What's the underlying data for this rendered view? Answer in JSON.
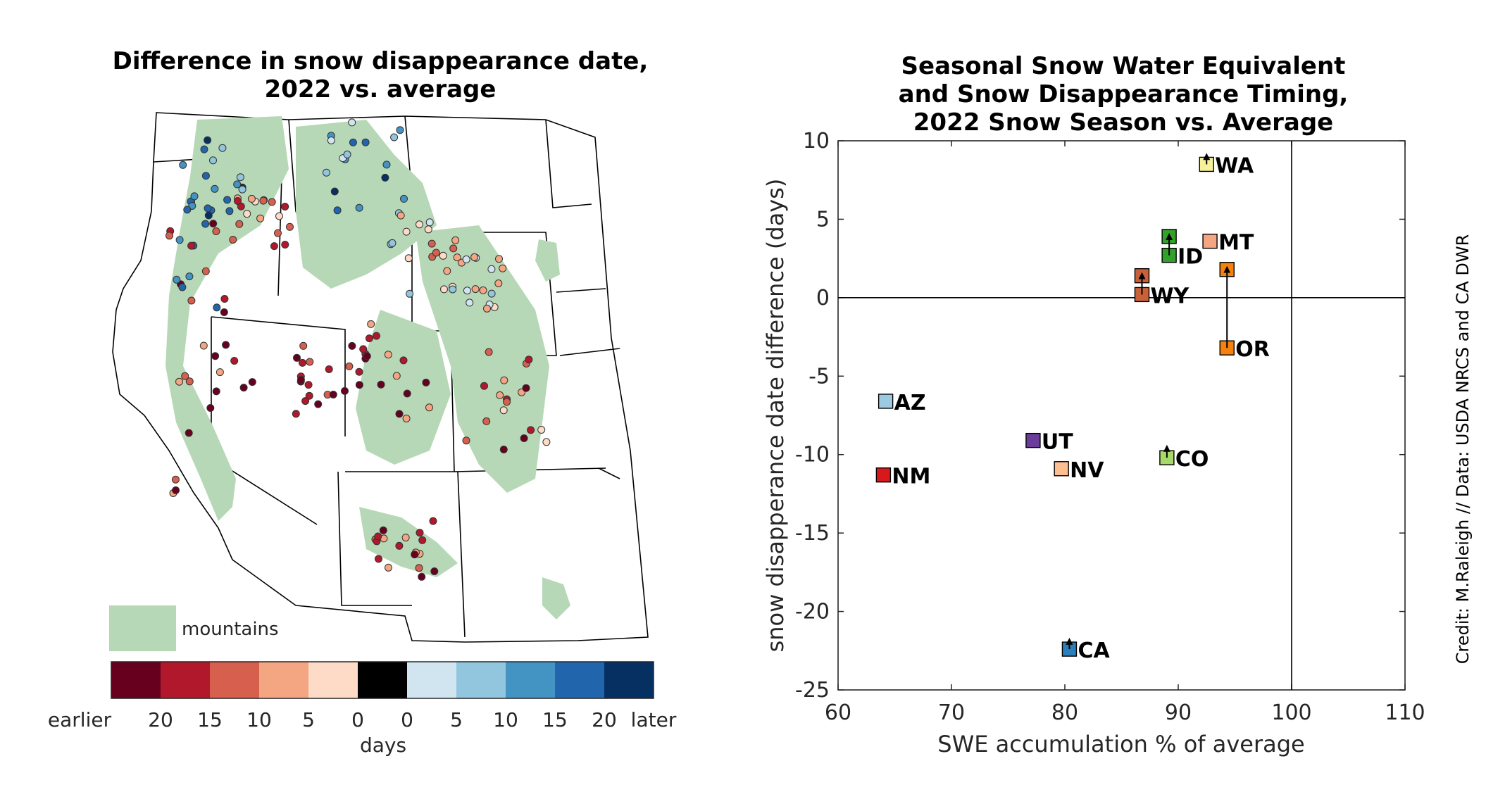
{
  "map_panel": {
    "title_line1": "Difference in snow disappearance date,",
    "title_line2": "2022 vs. average",
    "legend_label": "mountains",
    "legend_color": "#b7d8b7",
    "colorbar": {
      "colors": [
        "#67001f",
        "#b2182b",
        "#d6604d",
        "#f4a582",
        "#fddbc7",
        "#000000",
        "#d1e5f0",
        "#92c5de",
        "#4393c3",
        "#2166ac",
        "#053061"
      ],
      "tick_labels": [
        "earlier",
        "20",
        "15",
        "10",
        "5",
        "0",
        "0",
        "5",
        "10",
        "15",
        "20",
        "later"
      ],
      "label": "days"
    }
  },
  "chart_data": {
    "type": "scatter",
    "title": [
      "Seasonal Snow Water Equivalent",
      "and Snow Disappearance Timing,",
      "2022 Snow Season vs. Average"
    ],
    "xlabel": "SWE accumulation % of average",
    "ylabel": "snow disapperance date difference (days)",
    "xlim": [
      60,
      110
    ],
    "ylim": [
      -25,
      10
    ],
    "xticks": [
      60,
      70,
      80,
      90,
      100,
      110
    ],
    "yticks": [
      10,
      5,
      0,
      -5,
      -10,
      -15,
      -20,
      -25
    ],
    "reference_lines": {
      "x": 100,
      "y": 0
    },
    "points": [
      {
        "label": "WA",
        "x": 92.5,
        "y": 8.5,
        "color": "#f7f19a",
        "arrow_from": {
          "x": 92.5,
          "y": 8.5
        },
        "arrow_to": {
          "x": 92.5,
          "y": 9.0
        }
      },
      {
        "label": "MT",
        "x": 92.8,
        "y": 3.6,
        "color": "#f4a582"
      },
      {
        "label": "ID",
        "x": 89.2,
        "y": 2.7,
        "color": "#33a02c",
        "arrow_from": {
          "x": 89.2,
          "y": 2.7
        },
        "arrow_to": {
          "x": 89.2,
          "y": 3.9
        },
        "end_marker": {
          "x": 89.2,
          "y": 3.9
        }
      },
      {
        "label": "WY",
        "x": 86.8,
        "y": 0.2,
        "color": "#c8603a",
        "arrow_from": {
          "x": 86.8,
          "y": 0.2
        },
        "arrow_to": {
          "x": 86.8,
          "y": 1.4
        },
        "end_marker": {
          "x": 86.8,
          "y": 1.4
        }
      },
      {
        "label": "OR",
        "x": 94.3,
        "y": -3.2,
        "color": "#f5820e",
        "arrow_from": {
          "x": 94.3,
          "y": -3.2
        },
        "arrow_to": {
          "x": 94.3,
          "y": 1.8
        },
        "end_marker": {
          "x": 94.3,
          "y": 1.8
        }
      },
      {
        "label": "AZ",
        "x": 64.2,
        "y": -6.6,
        "color": "#9ecae1"
      },
      {
        "label": "UT",
        "x": 77.2,
        "y": -9.1,
        "color": "#6a3d9a"
      },
      {
        "label": "CO",
        "x": 89.0,
        "y": -10.2,
        "color": "#a6d96a",
        "arrow_from": {
          "x": 89.0,
          "y": -10.2
        },
        "arrow_to": {
          "x": 89.0,
          "y": -9.6
        }
      },
      {
        "label": "NV",
        "x": 79.7,
        "y": -10.9,
        "color": "#fdbf8f"
      },
      {
        "label": "NM",
        "x": 64.0,
        "y": -11.3,
        "color": "#d7191c"
      },
      {
        "label": "CA",
        "x": 80.4,
        "y": -22.4,
        "color": "#2c7fb8",
        "arrow_from": {
          "x": 80.4,
          "y": -22.4
        },
        "arrow_to": {
          "x": 80.4,
          "y": -21.9
        }
      }
    ]
  },
  "credit": "Credit: M.Raleigh // Data: USDA NRCS and CA DWR"
}
